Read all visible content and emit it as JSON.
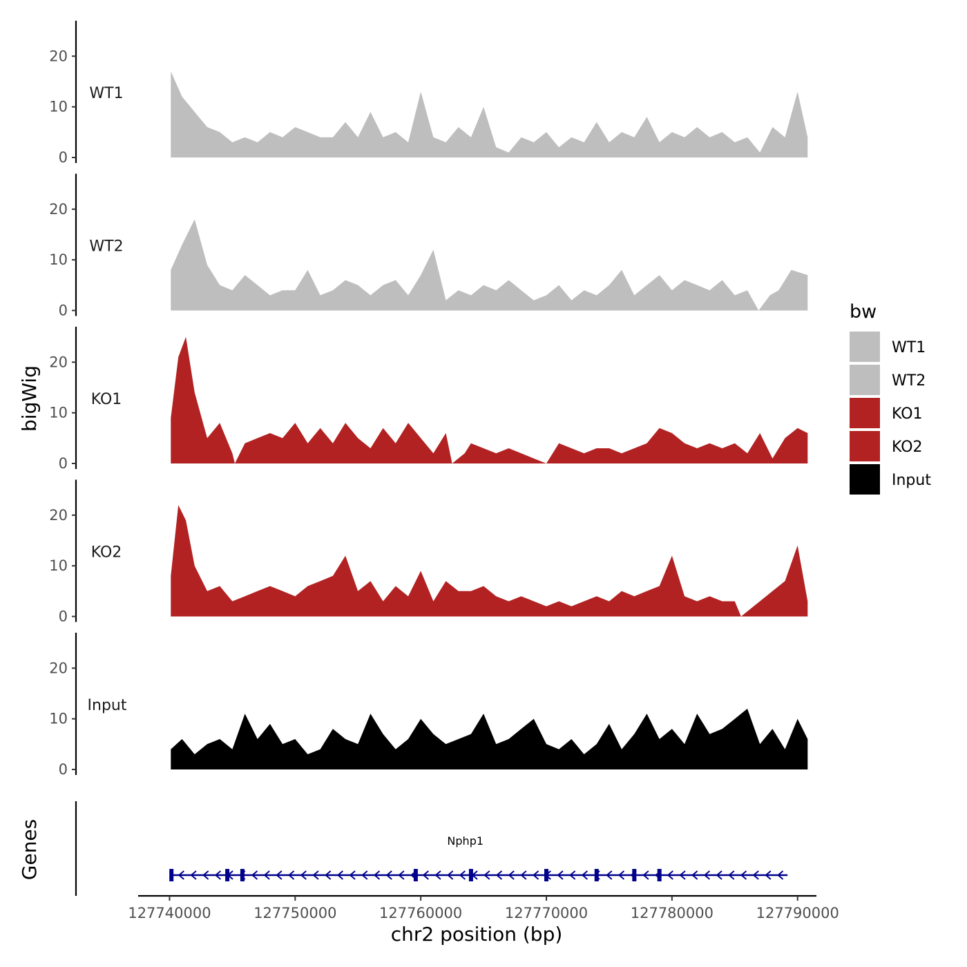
{
  "chart_data": {
    "type": "area",
    "ylabel": "bigWig",
    "xlabel": "chr2 position (bp)",
    "xlim": [
      127737500,
      127791500
    ],
    "ylim": [
      0,
      27
    ],
    "y_ticks": [
      0,
      10,
      20
    ],
    "x_ticks": [
      127740000,
      127750000,
      127760000,
      127770000,
      127780000,
      127790000
    ],
    "x_tick_labels": [
      "127740000",
      "127750000",
      "127760000",
      "127770000",
      "127780000",
      "127790000"
    ],
    "legend": {
      "title": "bw",
      "position": "right",
      "items": [
        {
          "label": "WT1",
          "color": "#bebebe"
        },
        {
          "label": "WT2",
          "color": "#bebebe"
        },
        {
          "label": "KO1",
          "color": "#b22222"
        },
        {
          "label": "KO2",
          "color": "#b22222"
        },
        {
          "label": "Input",
          "color": "#000000"
        }
      ]
    },
    "tracks": [
      {
        "name": "WT1",
        "color": "#bebebe",
        "x": [
          127740100,
          127741000,
          127742000,
          127743000,
          127744000,
          127745000,
          127746000,
          127747000,
          127748000,
          127749000,
          127750000,
          127751000,
          127752000,
          127753000,
          127754000,
          127755000,
          127756000,
          127757000,
          127758000,
          127759000,
          127760000,
          127761000,
          127762000,
          127763000,
          127764000,
          127765000,
          127766000,
          127767000,
          127768000,
          127769000,
          127770000,
          127771000,
          127772000,
          127773000,
          127774000,
          127775000,
          127776000,
          127777000,
          127778000,
          127779000,
          127780000,
          127781000,
          127782000,
          127783000,
          127784000,
          127785000,
          127786000,
          127787000,
          127788000,
          127789000,
          127790000,
          127790800
        ],
        "values": [
          17,
          12,
          9,
          6,
          5,
          3,
          4,
          3,
          5,
          4,
          6,
          5,
          4,
          4,
          7,
          4,
          9,
          4,
          5,
          3,
          13,
          4,
          3,
          6,
          4,
          10,
          2,
          1,
          4,
          3,
          5,
          2,
          4,
          3,
          7,
          3,
          5,
          4,
          8,
          3,
          5,
          4,
          6,
          4,
          5,
          3,
          4,
          1,
          6,
          4,
          13,
          4
        ]
      },
      {
        "name": "WT2",
        "color": "#bebebe",
        "x": [
          127740100,
          127741000,
          127742000,
          127743000,
          127744000,
          127745000,
          127746000,
          127747000,
          127748000,
          127749000,
          127750000,
          127751000,
          127752000,
          127753000,
          127754000,
          127755000,
          127756000,
          127757000,
          127758000,
          127759000,
          127760000,
          127761000,
          127762000,
          127763000,
          127764000,
          127765000,
          127766000,
          127767000,
          127768000,
          127769000,
          127770000,
          127771000,
          127772000,
          127773000,
          127774000,
          127775000,
          127776000,
          127777000,
          127778000,
          127779000,
          127780000,
          127781000,
          127782000,
          127783000,
          127784000,
          127785000,
          127786000,
          127786900,
          127787800,
          127788500,
          127789500,
          127790800
        ],
        "values": [
          8,
          13,
          18,
          9,
          5,
          4,
          7,
          5,
          3,
          4,
          4,
          8,
          3,
          4,
          6,
          5,
          3,
          5,
          6,
          3,
          7,
          12,
          2,
          4,
          3,
          5,
          4,
          6,
          4,
          2,
          3,
          5,
          2,
          4,
          3,
          5,
          8,
          3,
          5,
          7,
          4,
          6,
          5,
          4,
          6,
          3,
          4,
          0,
          3,
          4,
          8,
          7
        ]
      },
      {
        "name": "KO1",
        "color": "#b22222",
        "x": [
          127740100,
          127740700,
          127741300,
          127742000,
          127743000,
          127744000,
          127745000,
          127745200,
          127746000,
          127747000,
          127748000,
          127749000,
          127750000,
          127751000,
          127752000,
          127753000,
          127754000,
          127755000,
          127756000,
          127757000,
          127758000,
          127759000,
          127760000,
          127761000,
          127762000,
          127762500,
          127763500,
          127764000,
          127765000,
          127766000,
          127767000,
          127768000,
          127769000,
          127770000,
          127771000,
          127772000,
          127773000,
          127774000,
          127775000,
          127776000,
          127777000,
          127778000,
          127779000,
          127780000,
          127781000,
          127782000,
          127783000,
          127784000,
          127785000,
          127786000,
          127787000,
          127788000,
          127789000,
          127790000,
          127790800
        ],
        "values": [
          9,
          21,
          25,
          14,
          5,
          8,
          2,
          0,
          4,
          5,
          6,
          5,
          8,
          4,
          7,
          4,
          8,
          5,
          3,
          7,
          4,
          8,
          5,
          2,
          6,
          0,
          2,
          4,
          3,
          2,
          3,
          2,
          1,
          0,
          4,
          3,
          2,
          3,
          3,
          2,
          3,
          4,
          7,
          6,
          4,
          3,
          4,
          3,
          4,
          2,
          6,
          1,
          5,
          7,
          6
        ]
      },
      {
        "name": "KO2",
        "color": "#b22222",
        "x": [
          127740100,
          127740700,
          127741300,
          127742000,
          127743000,
          127744000,
          127745000,
          127746000,
          127747000,
          127748000,
          127749000,
          127750000,
          127751000,
          127752000,
          127753000,
          127754000,
          127755000,
          127756000,
          127757000,
          127758000,
          127759000,
          127760000,
          127761000,
          127762000,
          127763000,
          127764000,
          127765000,
          127766000,
          127767000,
          127768000,
          127769000,
          127770000,
          127771000,
          127772000,
          127773000,
          127774000,
          127775000,
          127776000,
          127777000,
          127778000,
          127779000,
          127780000,
          127781000,
          127782000,
          127783000,
          127784000,
          127785000,
          127785500,
          127786500,
          127787000,
          127788000,
          127789000,
          127790000,
          127790800
        ],
        "values": [
          8,
          22,
          19,
          10,
          5,
          6,
          3,
          4,
          5,
          6,
          5,
          4,
          6,
          7,
          8,
          12,
          5,
          7,
          3,
          6,
          4,
          9,
          3,
          7,
          5,
          5,
          6,
          4,
          3,
          4,
          3,
          2,
          3,
          2,
          3,
          4,
          3,
          5,
          4,
          5,
          6,
          12,
          4,
          3,
          4,
          3,
          3,
          0,
          2,
          3,
          5,
          7,
          14,
          3
        ]
      },
      {
        "name": "Input",
        "color": "#000000",
        "x": [
          127740100,
          127741000,
          127742000,
          127743000,
          127744000,
          127745000,
          127746000,
          127747000,
          127748000,
          127749000,
          127750000,
          127751000,
          127752000,
          127753000,
          127754000,
          127755000,
          127756000,
          127757000,
          127758000,
          127759000,
          127760000,
          127761000,
          127762000,
          127763000,
          127764000,
          127765000,
          127766000,
          127767000,
          127768000,
          127769000,
          127770000,
          127771000,
          127772000,
          127773000,
          127774000,
          127775000,
          127776000,
          127777000,
          127778000,
          127779000,
          127780000,
          127781000,
          127782000,
          127783000,
          127784000,
          127785000,
          127786000,
          127787000,
          127788000,
          127789000,
          127790000,
          127790800
        ],
        "values": [
          4,
          6,
          3,
          5,
          6,
          4,
          11,
          6,
          9,
          5,
          6,
          3,
          4,
          8,
          6,
          5,
          11,
          7,
          4,
          6,
          10,
          7,
          5,
          6,
          7,
          11,
          5,
          6,
          8,
          10,
          5,
          4,
          6,
          3,
          5,
          9,
          4,
          7,
          11,
          6,
          8,
          5,
          11,
          7,
          8,
          10,
          12,
          5,
          8,
          4,
          10,
          6
        ]
      }
    ],
    "gene_track": {
      "ylabel": "Genes",
      "gene": {
        "name": "Nphp1",
        "start": 127740100,
        "end": 127789200,
        "strand": "-",
        "color": "#00008b",
        "exons": [
          127740150,
          127744600,
          127745800,
          127759600,
          127764000,
          127770000,
          127774000,
          127777000,
          127779000
        ]
      }
    }
  }
}
